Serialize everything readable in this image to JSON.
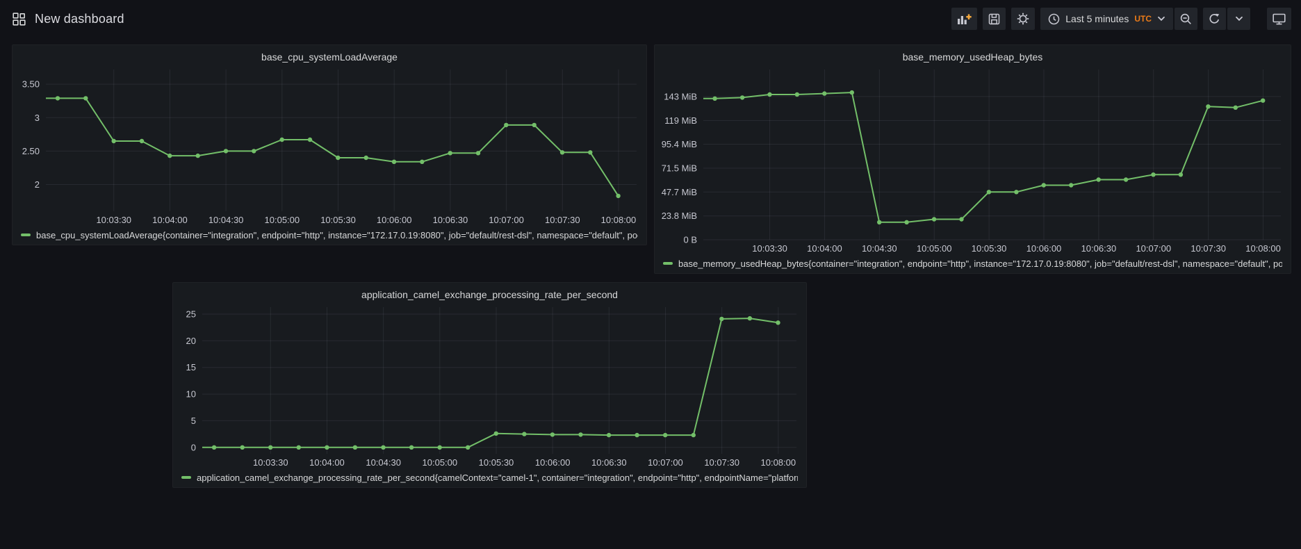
{
  "header": {
    "title": "New dashboard",
    "toolbar": {
      "time_range_label": "Last 5 minutes",
      "timezone": "UTC",
      "icons": [
        "grid-layout-icon",
        "bar-chart-plus-icon",
        "save-icon",
        "gear-icon",
        "clock-icon",
        "chevron-down-icon",
        "zoom-out-icon",
        "refresh-icon",
        "monitor-icon"
      ]
    }
  },
  "colors": {
    "page_bg": "#111217",
    "panel_bg": "#181b1f",
    "series_green": "#73bf69",
    "accent_orange": "#eb7b18",
    "text_primary": "#d8d9da",
    "axis_text": "#c7c8d1"
  },
  "chart_data": [
    {
      "type": "line",
      "title": "base_cpu_systemLoadAverage",
      "x_times": [
        "10:03:00",
        "10:03:15",
        "10:03:30",
        "10:03:45",
        "10:04:00",
        "10:04:15",
        "10:04:30",
        "10:04:45",
        "10:05:00",
        "10:05:15",
        "10:05:30",
        "10:05:45",
        "10:06:00",
        "10:06:15",
        "10:06:30",
        "10:06:45",
        "10:07:00",
        "10:07:15",
        "10:07:30",
        "10:07:45",
        "10:08:00"
      ],
      "x_tick_labels": [
        "10:03:30",
        "10:04:00",
        "10:04:30",
        "10:05:00",
        "10:05:30",
        "10:06:00",
        "10:06:30",
        "10:07:00",
        "10:07:30",
        "10:08:00"
      ],
      "y_ticks": [
        {
          "label": "3.50",
          "value": 3.5
        },
        {
          "label": "3",
          "value": 3
        },
        {
          "label": "2.50",
          "value": 2.5
        },
        {
          "label": "2",
          "value": 2
        }
      ],
      "ylim": [
        1.6,
        3.72
      ],
      "grid": true,
      "legend_position": "bottom",
      "series": [
        {
          "name": "base_cpu_systemLoadAverage{container=\"integration\", endpoint=\"http\", instance=\"172.17.0.19:8080\", job=\"default/rest-dsl\", namespace=\"default\", pod=\"rest-d",
          "color": "#73bf69",
          "values": [
            3.29,
            3.29,
            2.65,
            2.65,
            2.43,
            2.43,
            2.5,
            2.5,
            2.67,
            2.67,
            2.4,
            2.4,
            2.34,
            2.34,
            2.47,
            2.47,
            2.89,
            2.89,
            2.48,
            2.48,
            1.83
          ]
        }
      ]
    },
    {
      "type": "line",
      "title": "base_memory_usedHeap_bytes",
      "x_times": [
        "10:03:00",
        "10:03:15",
        "10:03:30",
        "10:03:45",
        "10:04:00",
        "10:04:15",
        "10:04:30",
        "10:04:45",
        "10:05:00",
        "10:05:15",
        "10:05:30",
        "10:05:45",
        "10:06:00",
        "10:06:15",
        "10:06:30",
        "10:06:45",
        "10:07:00",
        "10:07:15",
        "10:07:30",
        "10:07:45",
        "10:08:00"
      ],
      "x_tick_labels": [
        "10:03:30",
        "10:04:00",
        "10:04:30",
        "10:05:00",
        "10:05:30",
        "10:06:00",
        "10:06:30",
        "10:07:00",
        "10:07:30",
        "10:08:00"
      ],
      "y_ticks": [
        {
          "label": "143 MiB",
          "value": 143
        },
        {
          "label": "119 MiB",
          "value": 119
        },
        {
          "label": "95.4 MiB",
          "value": 95.4
        },
        {
          "label": "71.5 MiB",
          "value": 71.5
        },
        {
          "label": "47.7 MiB",
          "value": 47.7
        },
        {
          "label": "23.8 MiB",
          "value": 23.8
        },
        {
          "label": "0 B",
          "value": 0
        }
      ],
      "ylim": [
        0,
        170
      ],
      "grid": true,
      "legend_position": "bottom",
      "series": [
        {
          "name": "base_memory_usedHeap_bytes{container=\"integration\", endpoint=\"http\", instance=\"172.17.0.19:8080\", job=\"default/rest-dsl\", namespace=\"default\", pod=\"rest-d",
          "color": "#73bf69",
          "values": [
            141,
            142,
            145,
            145,
            146,
            147,
            17.5,
            17.5,
            20.5,
            20.5,
            47.7,
            47.7,
            54.5,
            54.5,
            60,
            60,
            65,
            65,
            133,
            132,
            139
          ]
        }
      ]
    },
    {
      "type": "line",
      "title": "application_camel_exchange_processing_rate_per_second",
      "x_times": [
        "10:03:00",
        "10:03:15",
        "10:03:30",
        "10:03:45",
        "10:04:00",
        "10:04:15",
        "10:04:30",
        "10:04:45",
        "10:05:00",
        "10:05:15",
        "10:05:30",
        "10:05:45",
        "10:06:00",
        "10:06:15",
        "10:06:30",
        "10:06:45",
        "10:07:00",
        "10:07:15",
        "10:07:30",
        "10:07:45",
        "10:08:00"
      ],
      "x_tick_labels": [
        "10:03:30",
        "10:04:00",
        "10:04:30",
        "10:05:00",
        "10:05:30",
        "10:06:00",
        "10:06:30",
        "10:07:00",
        "10:07:30",
        "10:08:00"
      ],
      "y_ticks": [
        {
          "label": "25",
          "value": 25
        },
        {
          "label": "20",
          "value": 20
        },
        {
          "label": "15",
          "value": 15
        },
        {
          "label": "10",
          "value": 10
        },
        {
          "label": "5",
          "value": 5
        },
        {
          "label": "0",
          "value": 0
        }
      ],
      "ylim": [
        -1.2,
        26.3
      ],
      "grid": true,
      "legend_position": "bottom",
      "series": [
        {
          "name": "application_camel_exchange_processing_rate_per_second{camelContext=\"camel-1\", container=\"integration\", endpoint=\"http\", endpointName=\"platform-http:///",
          "color": "#73bf69",
          "values": [
            0,
            0,
            0,
            0,
            0,
            0,
            0,
            0,
            0,
            0,
            2.6,
            2.5,
            2.4,
            2.4,
            2.3,
            2.3,
            2.3,
            2.3,
            24.1,
            24.2,
            23.4
          ]
        }
      ]
    }
  ]
}
